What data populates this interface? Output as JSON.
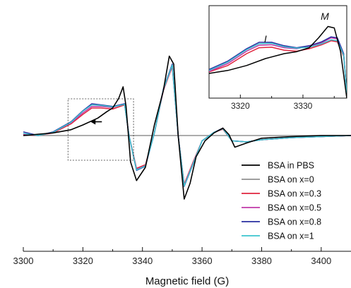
{
  "chart_data": [
    {
      "type": "line",
      "title": "",
      "xlabel": "Magnetic field (G)",
      "ylabel": "",
      "xlim": [
        3300,
        3410
      ],
      "x_ticks": [
        3300,
        3320,
        3340,
        3360,
        3380,
        3400
      ],
      "x_tick_labels": [
        "3300",
        "3320",
        "3340",
        "3360",
        "3380",
        "3400"
      ],
      "grid": false,
      "legend_position": "lower-right",
      "series": [
        {
          "name": "BSA in PBS",
          "color": "#000000",
          "x": [
            3300,
            3310,
            3316,
            3320,
            3325,
            3328,
            3330,
            3332,
            3333.5,
            3334.5,
            3336,
            3338,
            3341,
            3344,
            3347,
            3349,
            3350.5,
            3352,
            3354,
            3356,
            3358,
            3361,
            3364,
            3367,
            3369,
            3371,
            3375,
            3380,
            3390,
            3400,
            3410
          ],
          "y": [
            0.0,
            0.05,
            0.11,
            0.2,
            0.33,
            0.45,
            0.52,
            0.7,
            0.92,
            0.55,
            -0.5,
            -0.85,
            -0.6,
            0.2,
            0.85,
            1.5,
            1.35,
            0.0,
            -1.2,
            -0.9,
            -0.4,
            -0.1,
            0.05,
            0.14,
            0.02,
            -0.22,
            -0.14,
            -0.05,
            -0.02,
            0.0,
            0.0
          ]
        },
        {
          "name": "BSA on x=0",
          "color": "#909090",
          "x": [
            3300,
            3410
          ],
          "y": [
            0.0,
            0.0
          ]
        },
        {
          "name": "BSA on x=0.3",
          "color": "#e0243e",
          "x": [
            3300,
            3305,
            3310,
            3316,
            3320,
            3323,
            3326,
            3330,
            3334,
            3335.5,
            3338,
            3341,
            3344,
            3347,
            3350,
            3352,
            3354,
            3357,
            3360,
            3364,
            3367,
            3370,
            3375,
            3380,
            3390,
            3400,
            3410
          ],
          "y": [
            0.02,
            0.0,
            0.05,
            0.22,
            0.4,
            0.52,
            0.52,
            0.5,
            0.58,
            0.0,
            -0.62,
            -0.55,
            0.05,
            0.85,
            1.3,
            0.0,
            -0.92,
            -0.5,
            -0.1,
            0.06,
            0.12,
            -0.1,
            -0.12,
            -0.08,
            -0.04,
            -0.02,
            0.0
          ]
        },
        {
          "name": "BSA on x=0.5",
          "color": "#c13aa8",
          "x": [
            3300,
            3305,
            3310,
            3316,
            3320,
            3323,
            3326,
            3330,
            3334,
            3335.5,
            3338,
            3341,
            3344,
            3347,
            3350,
            3352,
            3354,
            3357,
            3360,
            3364,
            3367,
            3370,
            3375,
            3380,
            3390,
            3400,
            3410
          ],
          "y": [
            0.03,
            0.0,
            0.06,
            0.24,
            0.43,
            0.55,
            0.55,
            0.53,
            0.6,
            0.0,
            -0.64,
            -0.57,
            0.05,
            0.86,
            1.32,
            0.0,
            -0.94,
            -0.52,
            -0.1,
            0.06,
            0.13,
            -0.1,
            -0.12,
            -0.08,
            -0.04,
            -0.02,
            0.0
          ]
        },
        {
          "name": "BSA on x=0.8",
          "color": "#2a2ea0",
          "x": [
            3300,
            3305,
            3310,
            3316,
            3320,
            3323,
            3326,
            3330,
            3334,
            3335.5,
            3338,
            3341,
            3344,
            3347,
            3350,
            3352,
            3354,
            3357,
            3360,
            3364,
            3367,
            3370,
            3375,
            3380,
            3390,
            3400,
            3410
          ],
          "y": [
            0.07,
            0.0,
            0.07,
            0.26,
            0.47,
            0.6,
            0.58,
            0.55,
            0.6,
            0.0,
            -0.66,
            -0.58,
            0.05,
            0.88,
            1.35,
            0.0,
            -0.96,
            -0.54,
            -0.1,
            0.06,
            0.14,
            -0.1,
            -0.12,
            -0.08,
            -0.04,
            -0.02,
            0.0
          ]
        },
        {
          "name": "BSA on x=1",
          "color": "#3cc4cf",
          "x": [
            3300,
            3305,
            3310,
            3316,
            3320,
            3323,
            3326,
            3330,
            3334,
            3335.5,
            3338,
            3341,
            3344,
            3347,
            3350,
            3352,
            3354,
            3357,
            3360,
            3364,
            3367,
            3370,
            3375,
            3380,
            3390,
            3400,
            3410
          ],
          "y": [
            0.04,
            0.0,
            0.06,
            0.25,
            0.46,
            0.58,
            0.57,
            0.54,
            0.59,
            0.0,
            -0.65,
            -0.57,
            0.05,
            0.87,
            1.33,
            0.0,
            -0.95,
            -0.53,
            -0.1,
            0.06,
            0.13,
            -0.1,
            -0.12,
            -0.08,
            -0.04,
            -0.02,
            0.0
          ]
        }
      ]
    },
    {
      "type": "line",
      "title": "",
      "xlabel": "",
      "ylabel": "",
      "xlim": [
        3315,
        3337
      ],
      "x_ticks": [
        3320,
        3330
      ],
      "x_tick_labels": [
        "3320",
        "3330"
      ],
      "annotations": [
        {
          "text": "I",
          "x": 3324
        },
        {
          "text": "M",
          "x": 3333.5
        }
      ],
      "series": [
        {
          "name": "BSA in PBS",
          "color": "#000000",
          "x": [
            3315,
            3318,
            3321,
            3324,
            3327,
            3329,
            3331,
            3332.5,
            3334,
            3335,
            3336,
            3337
          ],
          "y": [
            0.0,
            0.06,
            0.16,
            0.3,
            0.4,
            0.44,
            0.52,
            0.72,
            0.95,
            0.92,
            0.45,
            -0.5
          ]
        },
        {
          "name": "BSA on x=0.3",
          "color": "#e0243e",
          "x": [
            3315,
            3318,
            3321,
            3323,
            3325,
            3327,
            3329,
            3331,
            3333,
            3334.5,
            3335.5,
            3336.5,
            3337
          ],
          "y": [
            0.03,
            0.16,
            0.4,
            0.52,
            0.53,
            0.47,
            0.45,
            0.5,
            0.58,
            0.66,
            0.64,
            0.35,
            -0.4
          ]
        },
        {
          "name": "BSA on x=0.5",
          "color": "#c13aa8",
          "x": [
            3315,
            3318,
            3321,
            3323,
            3325,
            3327,
            3329,
            3331,
            3333,
            3334.5,
            3335.5,
            3336.5,
            3337
          ],
          "y": [
            0.04,
            0.2,
            0.45,
            0.57,
            0.58,
            0.52,
            0.5,
            0.55,
            0.62,
            0.72,
            0.7,
            0.38,
            -0.4
          ]
        },
        {
          "name": "BSA on x=0.8",
          "color": "#2a2ea0",
          "x": [
            3315,
            3318,
            3321,
            3323,
            3325,
            3327,
            3329,
            3331,
            3333,
            3334.5,
            3335.5,
            3336.5,
            3337
          ],
          "y": [
            0.08,
            0.25,
            0.5,
            0.63,
            0.63,
            0.56,
            0.52,
            0.56,
            0.64,
            0.74,
            0.72,
            0.4,
            -0.4
          ]
        },
        {
          "name": "BSA on x=1",
          "color": "#3cc4cf",
          "x": [
            3315,
            3318,
            3321,
            3323,
            3325,
            3327,
            3329,
            3331,
            3333,
            3334.5,
            3335.5,
            3336.5,
            3337
          ],
          "y": [
            0.06,
            0.23,
            0.48,
            0.6,
            0.61,
            0.54,
            0.51,
            0.53,
            0.6,
            0.68,
            0.66,
            0.37,
            -0.4
          ]
        }
      ]
    }
  ]
}
